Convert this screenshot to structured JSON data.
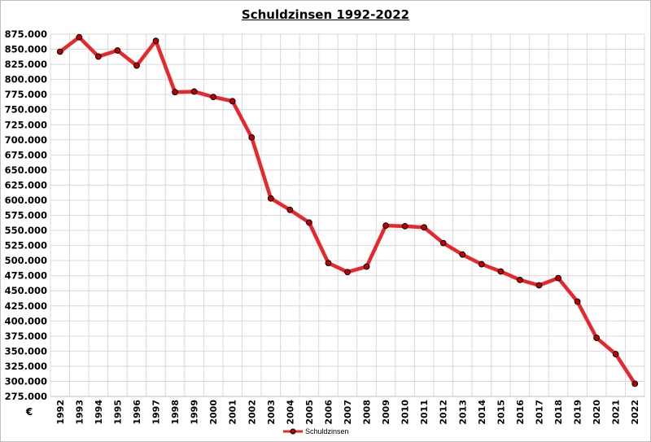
{
  "chart_data": {
    "type": "line",
    "title": "Schuldzinsen 1992-2022",
    "ylabel": "€",
    "xlabel": "",
    "ylim": [
      275000,
      875000
    ],
    "ytick_step": 25000,
    "grid": true,
    "legend_position": "bottom-center",
    "colors": {
      "line": "#e8262c",
      "marker_fill": "#c00000",
      "marker_stroke": "#000000",
      "grid": "#d9d9d9"
    },
    "x": [
      "1992",
      "1993",
      "1994",
      "1995",
      "1996",
      "1997",
      "1998",
      "1999",
      "2000",
      "2001",
      "2002",
      "2003",
      "2004",
      "2005",
      "2006",
      "2007",
      "2008",
      "2009",
      "2010",
      "2011",
      "2012",
      "2013",
      "2014",
      "2015",
      "2016",
      "2017",
      "2018",
      "2019",
      "2020",
      "2021",
      "2022"
    ],
    "series": [
      {
        "name": "Schuldzinsen",
        "values": [
          846000,
          870000,
          838000,
          848000,
          823000,
          864000,
          779000,
          780000,
          771000,
          764000,
          704000,
          603000,
          584000,
          563000,
          496000,
          481000,
          490000,
          558000,
          557000,
          555000,
          529000,
          510000,
          494000,
          482000,
          468000,
          459000,
          471000,
          432000,
          372000,
          345000,
          296000
        ]
      }
    ]
  }
}
